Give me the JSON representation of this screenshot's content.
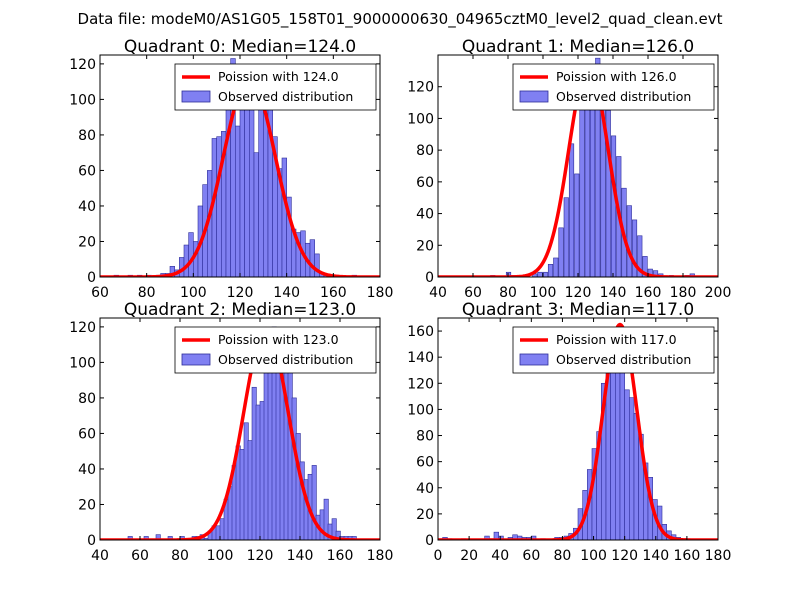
{
  "figure_title": "Data file: modeM0/AS1G05_158T01_9000000630_04965cztM0_level2_quad_clean.evt",
  "colors": {
    "bar_fill": "#8080f2",
    "bar_edge": "#2d2d99",
    "poisson_line": "#ff0000",
    "axes": "#000000"
  },
  "chart_data": [
    {
      "type": "bar",
      "title": "Quadrant 0: Median=124.0",
      "xlim": [
        60,
        180
      ],
      "ylim": [
        0,
        125
      ],
      "xticks": [
        60,
        80,
        100,
        120,
        140,
        160,
        180
      ],
      "yticks": [
        0,
        20,
        40,
        60,
        80,
        100,
        120
      ],
      "bin_width": 2,
      "bin_starts": [
        66,
        68,
        70,
        72,
        74,
        76,
        78,
        80,
        82,
        84,
        86,
        88,
        90,
        92,
        94,
        96,
        98,
        100,
        102,
        104,
        106,
        108,
        110,
        112,
        114,
        116,
        118,
        120,
        122,
        124,
        126,
        128,
        130,
        132,
        134,
        136,
        138,
        140,
        142,
        144,
        146,
        148,
        150,
        152,
        154,
        156,
        158,
        160,
        162,
        164,
        166,
        168
      ],
      "counts": [
        1,
        0,
        0,
        1,
        0,
        1,
        0,
        1,
        0,
        1,
        2,
        2,
        6,
        4,
        11,
        18,
        25,
        20,
        40,
        52,
        60,
        78,
        79,
        82,
        100,
        123,
        85,
        110,
        108,
        103,
        70,
        96,
        110,
        100,
        79,
        61,
        67,
        45,
        27,
        25,
        26,
        19,
        21,
        13,
        2,
        1,
        1,
        1,
        0,
        0,
        0,
        1
      ],
      "poisson_mean": 124.0,
      "poisson_peak": 112,
      "legend": [
        "Poission with 124.0",
        "Observed distribution"
      ]
    },
    {
      "type": "bar",
      "title": "Quadrant 1: Median=126.0",
      "xlim": [
        40,
        200
      ],
      "ylim": [
        0,
        140
      ],
      "xticks": [
        40,
        60,
        80,
        100,
        120,
        140,
        160,
        180,
        200
      ],
      "yticks": [
        0,
        20,
        40,
        60,
        80,
        100,
        120
      ],
      "bin_width": 2.6,
      "bin_starts": [
        70,
        73,
        76,
        79,
        82,
        85,
        88,
        91,
        94,
        97,
        100,
        103,
        106,
        109,
        112,
        115,
        118,
        121,
        124,
        127,
        130,
        133,
        136,
        139,
        142,
        145,
        148,
        151,
        154,
        157,
        160,
        163,
        166,
        169,
        172,
        175,
        178,
        181,
        184
      ],
      "counts": [
        1,
        0,
        0,
        3,
        1,
        0,
        1,
        0,
        2,
        3,
        3,
        8,
        12,
        31,
        50,
        84,
        65,
        111,
        114,
        129,
        138,
        114,
        105,
        89,
        76,
        56,
        45,
        36,
        26,
        13,
        5,
        4,
        2,
        0,
        1,
        0,
        0,
        1,
        2
      ],
      "poisson_mean": 126.0,
      "poisson_peak": 133,
      "legend": [
        "Poission with 126.0",
        "Observed distribution"
      ]
    },
    {
      "type": "bar",
      "title": "Quadrant 2: Median=123.0",
      "xlim": [
        40,
        180
      ],
      "ylim": [
        0,
        125
      ],
      "xticks": [
        40,
        60,
        80,
        100,
        120,
        140,
        160,
        180
      ],
      "yticks": [
        0,
        20,
        40,
        60,
        80,
        100,
        120
      ],
      "bin_width": 2.2,
      "bin_starts": [
        54,
        56,
        58,
        60,
        62,
        64,
        66,
        68,
        70,
        72,
        74,
        76,
        78,
        80,
        82,
        84,
        86,
        88,
        90,
        92,
        94,
        96,
        98,
        100,
        102,
        104,
        106,
        108,
        110,
        112,
        114,
        116,
        118,
        120,
        122,
        124,
        126,
        128,
        130,
        132,
        134,
        136,
        138,
        140,
        142,
        144,
        146,
        148,
        150,
        152,
        154,
        156,
        158,
        160,
        162,
        164,
        166
      ],
      "counts": [
        2,
        0,
        0,
        0,
        2,
        0,
        0,
        3,
        0,
        0,
        2,
        0,
        0,
        2,
        0,
        0,
        2,
        2,
        3,
        1,
        5,
        8,
        8,
        12,
        23,
        30,
        42,
        53,
        51,
        66,
        56,
        86,
        76,
        78,
        112,
        100,
        120,
        95,
        103,
        113,
        96,
        80,
        60,
        44,
        34,
        37,
        42,
        14,
        17,
        23,
        9,
        12,
        5,
        2,
        2,
        2,
        2
      ],
      "poisson_mean": 123.0,
      "poisson_peak": 119,
      "legend": [
        "Poission with 123.0",
        "Observed distribution"
      ]
    },
    {
      "type": "bar",
      "title": "Quadrant 3: Median=117.0",
      "xlim": [
        0,
        180
      ],
      "ylim": [
        0,
        170
      ],
      "xticks": [
        0,
        20,
        40,
        60,
        80,
        100,
        120,
        140,
        160,
        180
      ],
      "yticks": [
        0,
        20,
        40,
        60,
        80,
        100,
        120,
        140,
        160
      ],
      "bin_width": 3,
      "bin_starts": [
        0,
        3,
        6,
        9,
        12,
        15,
        18,
        21,
        24,
        27,
        30,
        33,
        36,
        39,
        42,
        45,
        48,
        51,
        54,
        57,
        60,
        63,
        66,
        69,
        72,
        75,
        78,
        81,
        84,
        87,
        90,
        93,
        96,
        99,
        102,
        105,
        108,
        111,
        114,
        117,
        120,
        123,
        126,
        129,
        132,
        135,
        138,
        141,
        144,
        147,
        150,
        153,
        156,
        159
      ],
      "counts": [
        1,
        2,
        1,
        0,
        0,
        1,
        0,
        0,
        0,
        0,
        3,
        1,
        6,
        3,
        0,
        2,
        4,
        3,
        2,
        2,
        3,
        0,
        1,
        0,
        0,
        2,
        2,
        3,
        5,
        9,
        24,
        38,
        54,
        70,
        83,
        120,
        132,
        150,
        155,
        141,
        115,
        109,
        97,
        81,
        59,
        48,
        31,
        26,
        12,
        7,
        4,
        2,
        1,
        1
      ],
      "poisson_mean": 117.0,
      "poisson_peak": 165,
      "legend": [
        "Poission with 117.0",
        "Observed distribution"
      ]
    }
  ]
}
